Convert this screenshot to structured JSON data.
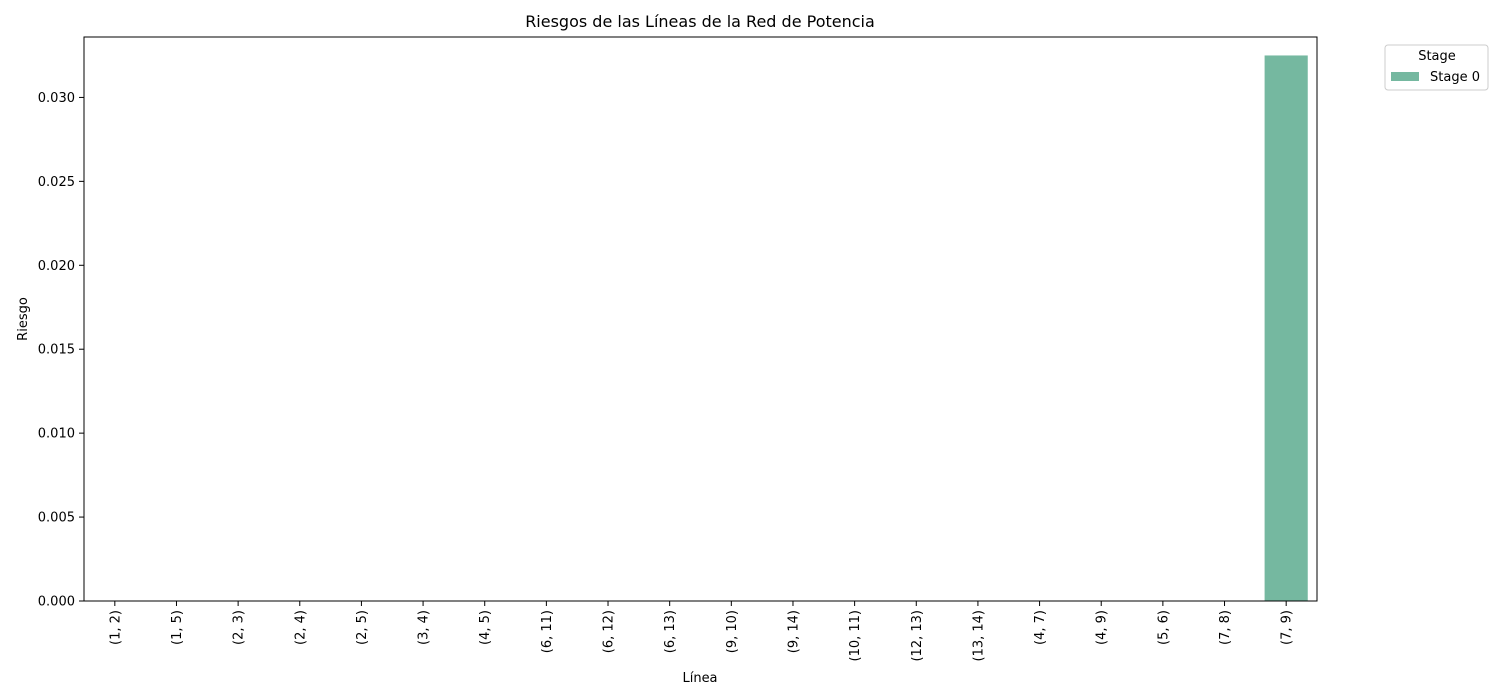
{
  "chart_data": {
    "type": "bar",
    "title": "Riesgos de las Líneas de la Red de Potencia",
    "xlabel": "Línea",
    "ylabel": "Riesgo",
    "categories": [
      "(1, 2)",
      "(1, 5)",
      "(2, 3)",
      "(2, 4)",
      "(2, 5)",
      "(3, 4)",
      "(4, 5)",
      "(6, 11)",
      "(6, 12)",
      "(6, 13)",
      "(9, 10)",
      "(9, 14)",
      "(10, 11)",
      "(12, 13)",
      "(13, 14)",
      "(4, 7)",
      "(4, 9)",
      "(5, 6)",
      "(7, 8)",
      "(7, 9)"
    ],
    "series": [
      {
        "name": "Stage 0",
        "color": "#75b8a0",
        "values": [
          0,
          0,
          0,
          0,
          0,
          0,
          0,
          0,
          0,
          0,
          0,
          0,
          0,
          0,
          0,
          0,
          0,
          0,
          0,
          0.0325
        ]
      }
    ],
    "ylim": [
      0,
      0.0336
    ],
    "yticks": [
      "0.000",
      "0.005",
      "0.010",
      "0.015",
      "0.020",
      "0.025",
      "0.030"
    ],
    "legend": {
      "title": "Stage",
      "placement": "outside-top-right"
    },
    "grid": false
  }
}
